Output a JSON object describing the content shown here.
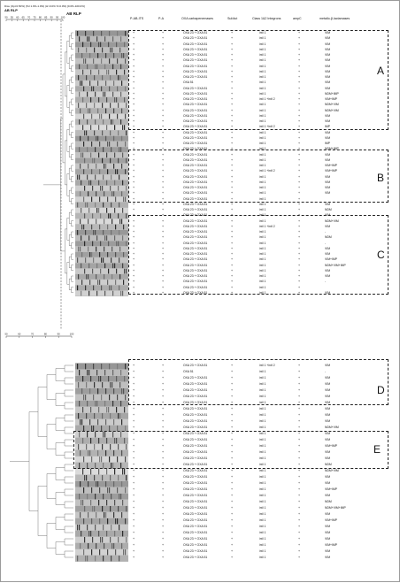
{
  "figure": {
    "top_note": "Dice (Opt:0.50%) (Tol 1.0%-1.0%) (H>0.0% S>0.0%) [0.0%-100.0%]",
    "panel_title": "AB RLP",
    "top_scale": [
      "50",
      "55",
      "60",
      "65",
      "70",
      "75",
      "80",
      "85",
      "90",
      "95",
      "100"
    ],
    "bottom_scale": [
      "50",
      "60",
      "70",
      "80",
      "90",
      "100"
    ]
  },
  "columns": {
    "itsc": "P-AB-ITS",
    "pa": "P-A",
    "oxa": "OXA carbapenemases",
    "sul": "Sul/dut",
    "integron": "Class 1&2 Integrons",
    "ampc": "ampC",
    "mbl": "metallo-β-lactamases"
  },
  "clusters": [
    "A",
    "B",
    "C",
    "D",
    "E"
  ],
  "rows_top": [
    {
      "oxa": "OXA 23 + OXA 51",
      "int": "intI 1",
      "mbl": "VIM"
    },
    {
      "oxa": "OXA 23 + OXA 51",
      "int": "intI 1",
      "mbl": "VIM"
    },
    {
      "oxa": "OXA 23 + OXA 51",
      "int": "intI 1",
      "mbl": "VIM"
    },
    {
      "oxa": "OXA 23 + OXA 51",
      "int": "intI 1",
      "mbl": "VIM"
    },
    {
      "oxa": "OXA 23 + OXA 51",
      "int": "intI 1",
      "mbl": "VIM"
    },
    {
      "oxa": "OXA 23 + OXA 51",
      "int": "intI 1",
      "mbl": "VIM"
    },
    {
      "oxa": "OXA 23 + OXA 51",
      "int": "intI 1",
      "mbl": "VIM"
    },
    {
      "oxa": "OXA 23 + OXA 51",
      "int": "intI 1",
      "mbl": "VIM"
    },
    {
      "oxa": "OXA 23 + OXA 51",
      "int": "intI 1",
      "mbl": "VIM"
    },
    {
      "oxa": "OXA 51",
      "int": "intI 1",
      "mbl": "VIM"
    },
    {
      "oxa": "OXA 23 + OXA 51",
      "int": "intI 1",
      "mbl": "VIM"
    },
    {
      "oxa": "OXA 23 + OXA 51",
      "int": "intI 1",
      "mbl": "NDM+IMP"
    },
    {
      "oxa": "OXA 23 + OXA 51",
      "int": "intI 1 +intI 2",
      "mbl": "VIM+IMP"
    },
    {
      "oxa": "OXA 23 + OXA 51",
      "int": "intI 1",
      "mbl": "NDM+VIM"
    },
    {
      "oxa": "OXA 23 + OXA 51",
      "int": "intI 1",
      "mbl": "NDM+VIM"
    },
    {
      "oxa": "OXA 23 + OXA 51",
      "int": "intI 1",
      "mbl": "VIM"
    },
    {
      "oxa": "OXA 23 + OXA 51",
      "int": "intI 1",
      "mbl": "VIM"
    },
    {
      "oxa": "OXA 23 + OXA 51",
      "int": "intI 1 +intI 2",
      "mbl": "IMP"
    },
    {
      "oxa": "OXA 23 + OXA 51",
      "int": "intI 1",
      "mbl": "VIM"
    },
    {
      "oxa": "OXA 23 + OXA 51",
      "int": "intI 1",
      "mbl": "VIM"
    },
    {
      "oxa": "OXA 23 + OXA 51",
      "int": "intI 1",
      "mbl": "IMP"
    },
    {
      "oxa": "OXA 23 + OXA 51",
      "int": "intI 1",
      "mbl": "NDM+IMP"
    },
    {
      "oxa": "OXA 23 + OXA 51",
      "int": "intI 1",
      "mbl": "VIM"
    },
    {
      "oxa": "OXA 23 + OXA 51",
      "int": "intI 1",
      "mbl": "VIM"
    },
    {
      "oxa": "OXA 23 + OXA 51",
      "int": "intI 1",
      "mbl": "VIM+IMP"
    },
    {
      "oxa": "OXA 23 + OXA 51",
      "int": "intI 1 +intI 2",
      "mbl": "VIM+IMP"
    },
    {
      "oxa": "OXA 23 + OXA 51",
      "int": "intI 1",
      "mbl": "VIM"
    },
    {
      "oxa": "OXA 23 + OXA 51",
      "int": "intI 1",
      "mbl": "VIM"
    },
    {
      "oxa": "OXA 23 + OXA 51",
      "int": "intI 1",
      "mbl": "VIM"
    },
    {
      "oxa": "OXA 23 + OXA 51",
      "int": "intI 1",
      "mbl": "VIM"
    },
    {
      "oxa": "OXA 23 + OXA 51",
      "int": "intI 1",
      "mbl": ""
    },
    {
      "oxa": "OXA 23 + OXA 51",
      "int": "intI 1",
      "mbl": "VIM"
    },
    {
      "oxa": "OXA 23 + OXA 51",
      "int": "intI 1",
      "mbl": "NDM"
    },
    {
      "oxa": "OXA 23 + OXA 51",
      "int": "intI 1",
      "mbl": "VIM"
    },
    {
      "oxa": "OXA 23 + OXA 51",
      "int": "intI 1",
      "mbl": "NDM+VIM"
    },
    {
      "oxa": "OXA 23 + OXA 51",
      "int": "intI 1 +intI 2",
      "mbl": "VIM"
    },
    {
      "oxa": "OXA 23 + OXA 51",
      "int": "intI 1",
      "mbl": "-"
    },
    {
      "oxa": "OXA 23 + OXA 51",
      "int": "intI 1",
      "mbl": "NDM"
    },
    {
      "oxa": "OXA 23 + OXA 51",
      "int": "intI 1",
      "mbl": "-"
    },
    {
      "oxa": "OXA 23 + OXA 51",
      "int": "intI 1",
      "mbl": "VIM"
    },
    {
      "oxa": "OXA 23 + OXA 51",
      "int": "intI 1",
      "mbl": "VIM"
    },
    {
      "oxa": "OXA 23 + OXA 51",
      "int": "intI 1",
      "mbl": "VIM+IMP"
    },
    {
      "oxa": "OXA 23 + OXA 51",
      "int": "intI 1",
      "mbl": "NDM+VIM+IMP"
    },
    {
      "oxa": "OXA 23 + OXA 51",
      "int": "intI 1",
      "mbl": "VIM"
    },
    {
      "oxa": "OXA 23 + OXA 51",
      "int": "intI 1",
      "mbl": "VIM"
    },
    {
      "oxa": "OXA 23 + OXA 51",
      "int": "intI 1",
      "mbl": "-"
    },
    {
      "oxa": "OXA 23 + OXA 51",
      "int": "intI 1",
      "mbl": ""
    },
    {
      "oxa": "OXA 23 + OXA 51",
      "int": "intI 1",
      "mbl": "VIM"
    }
  ],
  "rows_bottom": [
    {
      "oxa": "OXA 23 + OXA 51",
      "int": "intI 1 +intI 2",
      "mbl": "VIM"
    },
    {
      "oxa": "OXA 51",
      "int": "intI 1",
      "mbl": "-"
    },
    {
      "oxa": "OXA 23 + OXA 51",
      "int": "intI 1",
      "mbl": "VIM"
    },
    {
      "oxa": "OXA 23 + OXA 51",
      "int": "intI 1",
      "mbl": "VIM"
    },
    {
      "oxa": "OXA 23 + OXA 51",
      "int": "intI 1",
      "mbl": "VIM"
    },
    {
      "oxa": "OXA 23 + OXA 51",
      "int": "intI 1",
      "mbl": "VIM"
    },
    {
      "oxa": "OXA 23 + OXA 51",
      "int": "intI 1",
      "mbl": "VIM"
    },
    {
      "oxa": "OXA 23 + OXA 51",
      "int": "intI 1",
      "mbl": "VIM"
    },
    {
      "oxa": "OXA 23 + OXA 51",
      "int": "intI 1",
      "mbl": "VIM"
    },
    {
      "oxa": "OXA 23 + OXA 51",
      "int": "intI 1",
      "mbl": "VIM"
    },
    {
      "oxa": "OXA 23 + OXA 51",
      "int": "intI 1",
      "mbl": "NDM+VIM"
    },
    {
      "oxa": "OXA 23 + OXA 51",
      "int": "intI 1",
      "mbl": "VIM"
    },
    {
      "oxa": "OXA 23 + OXA 51",
      "int": "intI 1",
      "mbl": "VIM"
    },
    {
      "oxa": "OXA 23 + OXA 51",
      "int": "intI 1",
      "mbl": "VIM+IMP"
    },
    {
      "oxa": "OXA 23 + OXA 51",
      "int": "intI 1",
      "mbl": "VIM"
    },
    {
      "oxa": "OXA 23 + OXA 51",
      "int": "intI 1",
      "mbl": "VIM"
    },
    {
      "oxa": "OXA 23 + OXA 51",
      "int": "intI 1",
      "mbl": "NDM"
    },
    {
      "oxa": "OXA 23 + OXA 51",
      "int": "intI 1",
      "mbl": "NDM+VIM"
    },
    {
      "oxa": "OXA 23 + OXA 51",
      "int": "intI 1",
      "mbl": "VIM"
    },
    {
      "oxa": "OXA 23 + OXA 51",
      "int": "intI 1",
      "mbl": "VIM"
    },
    {
      "oxa": "OXA 23 + OXA 51",
      "int": "intI 1",
      "mbl": "VIM+IMP"
    },
    {
      "oxa": "OXA 23 + OXA 51",
      "int": "intI 1",
      "mbl": "VIM"
    },
    {
      "oxa": "OXA 23 + OXA 51",
      "int": "intI 1",
      "mbl": "NDM"
    },
    {
      "oxa": "OXA 23 + OXA 51",
      "int": "intI 1",
      "mbl": "NDM+VIM+IMP"
    },
    {
      "oxa": "OXA 23 + OXA 51",
      "int": "intI 1",
      "mbl": "VIM"
    },
    {
      "oxa": "OXA 23 + OXA 51",
      "int": "intI 1",
      "mbl": "VIM+IMP"
    },
    {
      "oxa": "OXA 23 + OXA 51",
      "int": "intI 1",
      "mbl": "VIM"
    },
    {
      "oxa": "OXA 23 + OXA 51",
      "int": "intI 1",
      "mbl": "VIM"
    },
    {
      "oxa": "OXA 23 + OXA 51",
      "int": "intI 1",
      "mbl": "VIM"
    },
    {
      "oxa": "OXA 23 + OXA 51",
      "int": "intI 1",
      "mbl": "VIM+IMP"
    },
    {
      "oxa": "OXA 23 + OXA 51",
      "int": "intI 1",
      "mbl": "VIM"
    },
    {
      "oxa": "OXA 23 + OXA 51",
      "int": "intI 1",
      "mbl": "VIM"
    }
  ]
}
